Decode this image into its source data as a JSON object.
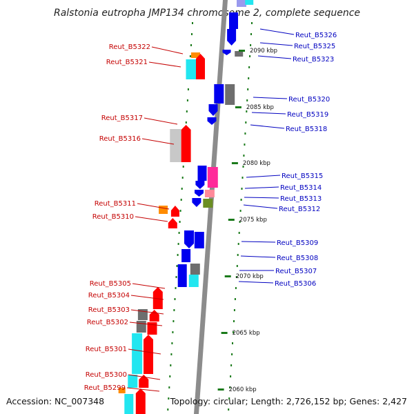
{
  "title": "Ralstonia eutropha JMP134 chromosome 2, complete sequence",
  "accession": "Accession: NC_007348",
  "summary": "Topology: circular; Length: 2,726,152 bp; Genes: 2,427",
  "colors": {
    "backbone": "#8c8c8c",
    "tick": "#1a7a1a",
    "red": "#ff0000",
    "blue": "#0000ee",
    "cyan": "#22e6f0",
    "orange": "#ff8c00",
    "gray": "#6e6e6e",
    "silver": "#c8c8c8",
    "magenta": "#ff2a9a",
    "pink": "#ff8a9a",
    "olive": "#6b8e23",
    "lavender": "#9a9aee",
    "leftLabel": "#c40000",
    "rightLabel": "#0000c0"
  },
  "ticks": [
    "2090 kbp",
    "2085 kbp",
    "2080 kbp",
    "2075 kbp",
    "2070 kbp",
    "2065 kbp",
    "2060 kbp"
  ],
  "left_genes": [
    "Reut_B5322",
    "Reut_B5321",
    "Reut_B5317",
    "Reut_B5316",
    "Reut_B5311",
    "Reut_B5310",
    "Reut_B5305",
    "Reut_B5304",
    "Reut_B5303",
    "Reut_B5302",
    "Reut_B5301",
    "Reut_B5300",
    "Reut_B5299"
  ],
  "right_genes": [
    "Reut_B5326",
    "Reut_B5325",
    "Reut_B5323",
    "Reut_B5320",
    "Reut_B5319",
    "Reut_B5318",
    "Reut_B5315",
    "Reut_B5314",
    "Reut_B5313",
    "Reut_B5312",
    "Reut_B5309",
    "Reut_B5308",
    "Reut_B5307",
    "Reut_B5306"
  ]
}
